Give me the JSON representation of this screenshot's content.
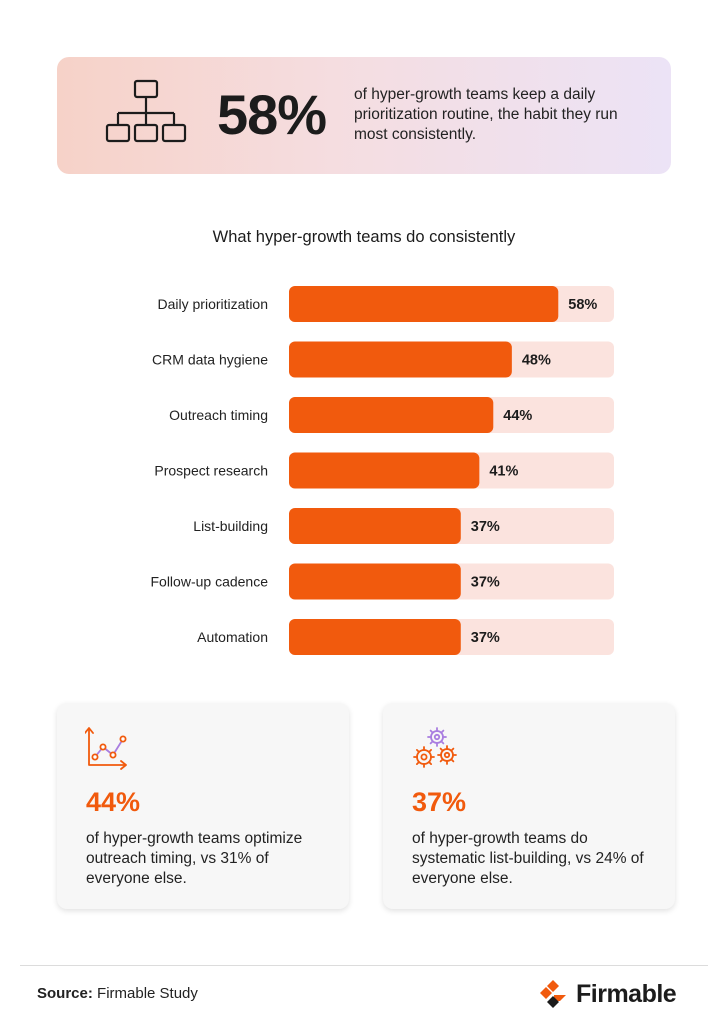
{
  "hero": {
    "icon": "org-chart-icon",
    "stat": "58%",
    "text": "of hyper-growth teams keep a daily prioritization routine, the habit they run most consistently."
  },
  "chart_data": {
    "type": "bar",
    "orientation": "horizontal",
    "title": "What hyper-growth teams do consistently",
    "categories": [
      "Daily prioritization",
      "CRM data hygiene",
      "Outreach timing",
      "Prospect research",
      "List-building",
      "Follow-up cadence",
      "Automation"
    ],
    "values": [
      58,
      48,
      44,
      41,
      37,
      37,
      37
    ],
    "value_labels": [
      "58%",
      "48%",
      "44%",
      "41%",
      "37%",
      "37%",
      "37%"
    ],
    "xlim": [
      0,
      70
    ],
    "bar_color": "#f15a0d",
    "track_color": "#fbe3de",
    "grid": false
  },
  "cards": [
    {
      "icon": "growth-line-chart-icon",
      "stat": "44%",
      "text": "of hyper-growth teams optimize outreach timing, vs 31% of everyone else."
    },
    {
      "icon": "gears-icon",
      "stat": "37%",
      "text": "of hyper-growth teams do systematic list-building, vs 24% of everyone else."
    }
  ],
  "footer": {
    "source_label": "Source:",
    "source_text": "Firmable Study",
    "brand": "Firmable",
    "brand_icon": "firmable-logo-icon"
  },
  "colors": {
    "accent": "#f15a0d",
    "icon_purple": "#a97de0"
  }
}
